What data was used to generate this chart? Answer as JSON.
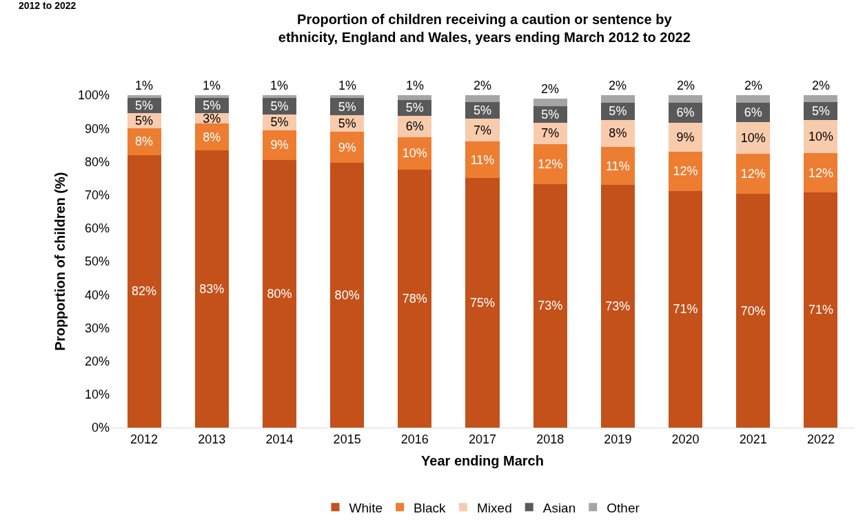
{
  "chart_data": {
    "type": "bar",
    "stacked": true,
    "title": "Proportion of children receiving a caution or sentence by ethnicity, England and Wales, years ending March 2012 to 2022",
    "xlabel": "Year ending March",
    "ylabel": "Propportion of children (%)",
    "annotations": [
      "2012 to 2022"
    ],
    "categories": [
      "2012",
      "2013",
      "2014",
      "2015",
      "2016",
      "2017",
      "2018",
      "2019",
      "2020",
      "2021",
      "2022"
    ],
    "series": [
      {
        "name": "White",
        "color": "#c4511a",
        "values": [
          82,
          83.3,
          80.5,
          79.6,
          77.6,
          75.1,
          73.3,
          73,
          71.2,
          70.3,
          70.8
        ],
        "value_labels": [
          "82%",
          "83%",
          "80%",
          "80%",
          "78%",
          "75%",
          "73%",
          "73%",
          "71%",
          "70%",
          "71%"
        ]
      },
      {
        "name": "Black",
        "color": "#ed7d31",
        "values": [
          8.1,
          8.1,
          9,
          9.4,
          9.8,
          10.9,
          11.9,
          11.4,
          11.8,
          12.1,
          11.7
        ],
        "value_labels": [
          "8%",
          "8%",
          "9%",
          "9%",
          "10%",
          "11%",
          "12%",
          "11%",
          "12%",
          "12%",
          "12%"
        ]
      },
      {
        "name": "Mixed",
        "color": "#f8cbad",
        "values": [
          4.6,
          3.3,
          4.7,
          4.9,
          6.4,
          7,
          6.6,
          8.2,
          8.8,
          9.6,
          10.1
        ],
        "value_labels": [
          "5%",
          "3%",
          "5%",
          "5%",
          "6%",
          "7%",
          "7%",
          "8%",
          "9%",
          "10%",
          "10%"
        ]
      },
      {
        "name": "Asian",
        "color": "#595959",
        "values": [
          4.5,
          4.5,
          5,
          5.2,
          4.8,
          4.9,
          4.9,
          5.1,
          5.9,
          5.8,
          5.3
        ],
        "value_labels": [
          "5%",
          "5%",
          "5%",
          "5%",
          "5%",
          "5%",
          "5%",
          "5%",
          "6%",
          "6%",
          "5%"
        ]
      },
      {
        "name": "Other",
        "color": "#a5a5a5",
        "values": [
          0.8,
          0.8,
          0.8,
          0.8,
          1.4,
          2.1,
          2.3,
          2.3,
          2.3,
          2.2,
          2.1
        ],
        "value_labels": [
          "1%",
          "1%",
          "1%",
          "1%",
          "1%",
          "2%",
          "2%",
          "2%",
          "2%",
          "2%",
          "2%"
        ]
      }
    ],
    "ylim": [
      0,
      100
    ],
    "yticks": [
      {
        "value": 0,
        "label": "0%"
      },
      {
        "value": 10,
        "label": "10%"
      },
      {
        "value": 20,
        "label": "20%"
      },
      {
        "value": 30,
        "label": "30%"
      },
      {
        "value": 40,
        "label": "40%"
      },
      {
        "value": 50,
        "label": "50%"
      },
      {
        "value": 60,
        "label": "60%"
      },
      {
        "value": 70,
        "label": "70%"
      },
      {
        "value": 80,
        "label": "80%"
      },
      {
        "value": 90,
        "label": "90%"
      },
      {
        "value": 100,
        "label": "100%"
      }
    ],
    "grid": false,
    "legend": "bottom"
  }
}
